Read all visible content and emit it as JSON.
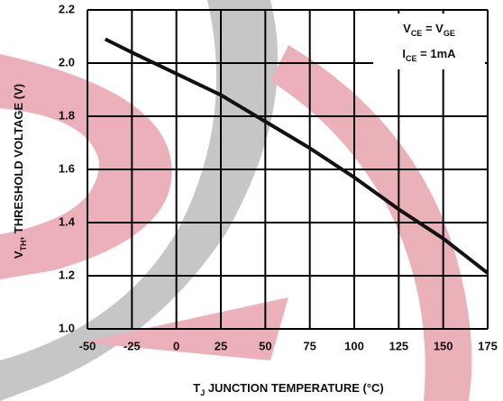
{
  "chart_data": {
    "type": "line",
    "xlabel": [
      {
        "text": "T"
      },
      {
        "text": "J",
        "sub": true
      },
      {
        "text": " JUNCTION TEMPERATURE (°C)"
      }
    ],
    "ylabel": [
      {
        "text": "V"
      },
      {
        "text": "TH",
        "sub": true
      },
      {
        "text": ", THRESHOLD VOLTAGE (V)"
      }
    ],
    "annotations": [
      [
        {
          "text": "V"
        },
        {
          "text": "CE",
          "sub": true
        },
        {
          "text": " = V"
        },
        {
          "text": "GE",
          "sub": true
        }
      ],
      [
        {
          "text": "I"
        },
        {
          "text": "CE",
          "sub": true
        },
        {
          "text": " = 1mA"
        }
      ]
    ],
    "x": [
      -40,
      -25,
      0,
      25,
      50,
      75,
      100,
      125,
      150,
      175
    ],
    "series": [
      {
        "color": "#111111",
        "values": [
          2.09,
          2.04,
          1.96,
          1.88,
          1.78,
          1.68,
          1.57,
          1.45,
          1.34,
          1.21
        ]
      }
    ],
    "xlim": [
      -50,
      175
    ],
    "xticks": [
      -50,
      -25,
      0,
      25,
      50,
      75,
      100,
      125,
      150,
      175
    ],
    "ylim": [
      1,
      2.2
    ],
    "yticks": [
      {
        "value": 1,
        "label": "1.0"
      },
      1.2,
      1.4,
      1.6,
      1.8,
      {
        "value": 2,
        "label": "2.0"
      },
      2.2
    ],
    "grid": true
  }
}
